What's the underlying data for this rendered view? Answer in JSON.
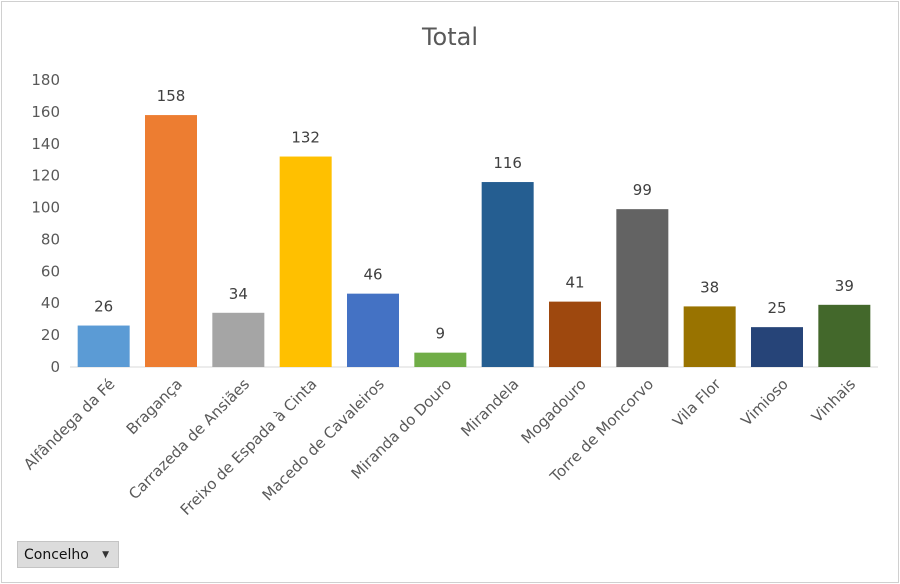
{
  "filter": {
    "label": "Concelho",
    "arrow_icon": "dropdown-arrow-icon"
  },
  "chart_data": {
    "type": "bar",
    "title": "Total",
    "xlabel": "",
    "ylabel": "",
    "ylim": [
      0,
      180
    ],
    "yticks": [
      0,
      20,
      40,
      60,
      80,
      100,
      120,
      140,
      160,
      180
    ],
    "grid": false,
    "legend": "none",
    "categories": [
      "Alfândega da Fé",
      "Bragança",
      "Carrazeda de Ansiães",
      "Freixo de Espada à Cinta",
      "Macedo de Cavaleiros",
      "Miranda do Douro",
      "Mirandela",
      "Mogadouro",
      "Torre de Moncorvo",
      "Vila Flor",
      "Vimioso",
      "Vinhais"
    ],
    "values": [
      26,
      158,
      34,
      132,
      46,
      9,
      116,
      41,
      99,
      38,
      25,
      39
    ],
    "colors": [
      "#5b9bd5",
      "#ed7d31",
      "#a5a5a5",
      "#ffc000",
      "#4472c4",
      "#70ad47",
      "#255e91",
      "#9e480e",
      "#636363",
      "#997300",
      "#264478",
      "#43682b"
    ]
  }
}
